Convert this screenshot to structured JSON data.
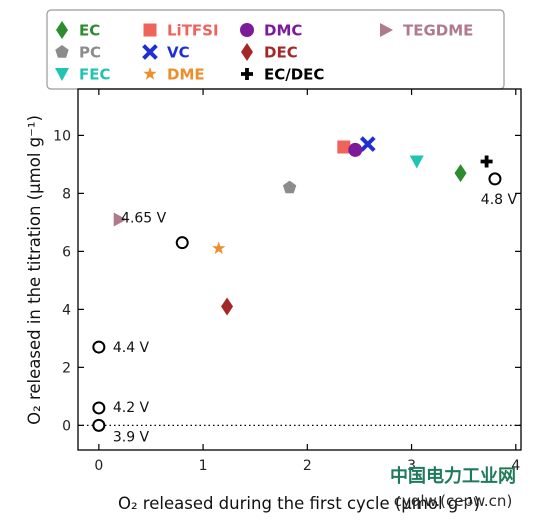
{
  "chart_data": {
    "type": "scatter",
    "xlabel": "O₂ released during the first cycle (μmol g⁻¹)",
    "ylabel": "O₂ released in the titration (μmol g⁻¹)",
    "xlim": [
      -0.2,
      4.05
    ],
    "ylim": [
      -0.85,
      11.6
    ],
    "xticks": [
      0,
      1,
      2,
      3,
      4
    ],
    "yticks": [
      0,
      2,
      4,
      6,
      8,
      10
    ],
    "reference_line": {
      "y": 0,
      "style": "dotted"
    },
    "legend_position": "top",
    "series": [
      {
        "name": "EC",
        "marker": "diamond",
        "color": "#2e8b2e",
        "points": [
          {
            "x": 3.47,
            "y": 8.7
          }
        ]
      },
      {
        "name": "PC",
        "marker": "pentagon",
        "color": "#8c8c8c",
        "points": [
          {
            "x": 1.83,
            "y": 8.2
          }
        ]
      },
      {
        "name": "FEC",
        "marker": "triangle-down",
        "color": "#21c3b3",
        "points": [
          {
            "x": 3.05,
            "y": 9.1
          }
        ]
      },
      {
        "name": "LiTFSI",
        "marker": "square",
        "color": "#f0635a",
        "points": [
          {
            "x": 2.35,
            "y": 9.6
          }
        ]
      },
      {
        "name": "VC",
        "marker": "x-cross",
        "color": "#1f2fd6",
        "points": [
          {
            "x": 2.58,
            "y": 9.7
          }
        ]
      },
      {
        "name": "DME",
        "marker": "star",
        "color": "#ee8e2b",
        "points": [
          {
            "x": 1.15,
            "y": 6.1
          }
        ]
      },
      {
        "name": "DMC",
        "marker": "circle",
        "color": "#7d1a9a",
        "points": [
          {
            "x": 2.46,
            "y": 9.5
          }
        ]
      },
      {
        "name": "DEC",
        "marker": "diamond",
        "color": "#a52828",
        "points": [
          {
            "x": 1.23,
            "y": 4.1
          }
        ]
      },
      {
        "name": "EC/DEC",
        "marker": "plus",
        "color": "#000000",
        "points": [
          {
            "x": 3.72,
            "y": 9.1
          }
        ]
      },
      {
        "name": "TEGDME",
        "marker": "triangle-right",
        "color": "#b07a8e",
        "points": [
          {
            "x": 0.2,
            "y": 7.1
          }
        ]
      },
      {
        "marker": "open-circle",
        "color": "#000000",
        "points": [
          {
            "x": 0.0,
            "y": 0.0,
            "label": "3.9 V"
          },
          {
            "x": 0.0,
            "y": 0.6,
            "label": "4.2 V"
          },
          {
            "x": 0.0,
            "y": 2.7,
            "label": "4.4 V"
          },
          {
            "x": 0.8,
            "y": 6.3,
            "label": "4.65 V"
          },
          {
            "x": 3.8,
            "y": 8.5,
            "label": "4.8 V"
          }
        ]
      }
    ]
  },
  "watermark": {
    "text": "中国电力工业网",
    "url": "cyqlw.(cepw.cn)"
  }
}
